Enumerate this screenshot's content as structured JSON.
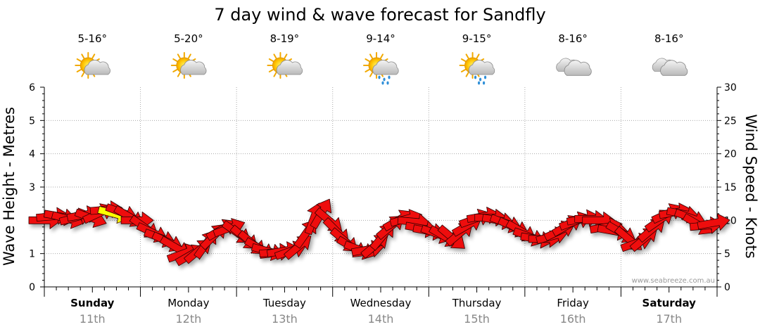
{
  "chart_data": {
    "type": "line",
    "title": "7 day wind & wave forecast for Sandfly",
    "ylabel_left": "Wave Height - Metres",
    "ylabel_right": "Wind Speed - Knots",
    "ylim_left": [
      0,
      6
    ],
    "ylim_right": [
      0,
      30
    ],
    "yticks_left": [
      "0",
      "1",
      "2",
      "3",
      "4",
      "5",
      "6"
    ],
    "yticks_right": [
      "0",
      "5",
      "10",
      "15",
      "20",
      "25",
      "30"
    ],
    "grid": true,
    "credit": "www.seabreeze.com.au",
    "days": [
      {
        "name": "Sunday",
        "date": "11th",
        "bold": true,
        "temp": "5-16°",
        "weather": "partly-cloudy-icon"
      },
      {
        "name": "Monday",
        "date": "12th",
        "bold": false,
        "temp": "5-20°",
        "weather": "partly-cloudy-icon"
      },
      {
        "name": "Tuesday",
        "date": "13th",
        "bold": false,
        "temp": "8-19°",
        "weather": "partly-cloudy-icon"
      },
      {
        "name": "Wednesday",
        "date": "14th",
        "bold": false,
        "temp": "9-14°",
        "weather": "showers-icon"
      },
      {
        "name": "Thursday",
        "date": "15th",
        "bold": false,
        "temp": "9-15°",
        "weather": "showers-icon"
      },
      {
        "name": "Friday",
        "date": "16th",
        "bold": false,
        "temp": "8-16°",
        "weather": "cloudy-icon"
      },
      {
        "name": "Saturday",
        "date": "17th",
        "bold": true,
        "temp": "8-16°",
        "weather": "cloudy-icon"
      }
    ],
    "series": [
      {
        "name": "Wind Speed - Knots",
        "unit": "knots",
        "points": [
          {
            "day": 0.0,
            "speed": 10.0,
            "dir": 0
          },
          {
            "day": 0.08,
            "speed": 10.6,
            "dir": -5
          },
          {
            "day": 0.16,
            "speed": 10.6,
            "dir": 10
          },
          {
            "day": 0.24,
            "speed": 10.2,
            "dir": 15
          },
          {
            "day": 0.32,
            "speed": 10.4,
            "dir": -15
          },
          {
            "day": 0.4,
            "speed": 10.8,
            "dir": -10
          },
          {
            "day": 0.48,
            "speed": 10.4,
            "dir": 20
          },
          {
            "day": 0.56,
            "speed": 11.0,
            "dir": -25
          },
          {
            "day": 0.64,
            "speed": 11.6,
            "dir": -5
          },
          {
            "day": 0.72,
            "speed": 11.0,
            "dir": 15,
            "color": "#ffff00"
          },
          {
            "day": 0.8,
            "speed": 11.2,
            "dir": 20
          },
          {
            "day": 0.88,
            "speed": 10.6,
            "dir": 30
          },
          {
            "day": 0.96,
            "speed": 10.0,
            "dir": 0
          },
          {
            "day": 1.04,
            "speed": 9.0,
            "dir": 35
          },
          {
            "day": 1.12,
            "speed": 8.2,
            "dir": 25
          },
          {
            "day": 1.2,
            "speed": 7.4,
            "dir": 20
          },
          {
            "day": 1.28,
            "speed": 6.8,
            "dir": 25
          },
          {
            "day": 1.36,
            "speed": 6.0,
            "dir": 30
          },
          {
            "day": 1.44,
            "speed": 5.0,
            "dir": -20
          },
          {
            "day": 1.52,
            "speed": 4.8,
            "dir": -30
          },
          {
            "day": 1.6,
            "speed": 5.4,
            "dir": -40
          },
          {
            "day": 1.68,
            "speed": 6.4,
            "dir": -55
          },
          {
            "day": 1.76,
            "speed": 7.6,
            "dir": -45
          },
          {
            "day": 1.84,
            "speed": 8.6,
            "dir": -30
          },
          {
            "day": 1.92,
            "speed": 8.8,
            "dir": -20
          },
          {
            "day": 2.0,
            "speed": 8.2,
            "dir": 35
          },
          {
            "day": 2.08,
            "speed": 7.4,
            "dir": 40
          },
          {
            "day": 2.16,
            "speed": 6.6,
            "dir": 40
          },
          {
            "day": 2.24,
            "speed": 5.8,
            "dir": 30
          },
          {
            "day": 2.32,
            "speed": 5.4,
            "dir": 15
          },
          {
            "day": 2.4,
            "speed": 5.2,
            "dir": -5
          },
          {
            "day": 2.48,
            "speed": 5.4,
            "dir": -10
          },
          {
            "day": 2.56,
            "speed": 5.4,
            "dir": -20
          },
          {
            "day": 2.64,
            "speed": 6.0,
            "dir": -40
          },
          {
            "day": 2.72,
            "speed": 8.0,
            "dir": -55
          },
          {
            "day": 2.8,
            "speed": 10.2,
            "dir": -70
          },
          {
            "day": 2.88,
            "speed": 11.0,
            "dir": -60
          },
          {
            "day": 2.96,
            "speed": 10.0,
            "dir": 40
          },
          {
            "day": 3.04,
            "speed": 8.4,
            "dir": 45
          },
          {
            "day": 3.12,
            "speed": 7.0,
            "dir": 40
          },
          {
            "day": 3.2,
            "speed": 6.0,
            "dir": 30
          },
          {
            "day": 3.28,
            "speed": 5.6,
            "dir": 20
          },
          {
            "day": 3.36,
            "speed": 5.6,
            "dir": -10
          },
          {
            "day": 3.44,
            "speed": 6.2,
            "dir": -40
          },
          {
            "day": 3.52,
            "speed": 7.6,
            "dir": -50
          },
          {
            "day": 3.6,
            "speed": 9.0,
            "dir": -40
          },
          {
            "day": 3.68,
            "speed": 10.0,
            "dir": -30
          },
          {
            "day": 3.76,
            "speed": 10.2,
            "dir": -15
          },
          {
            "day": 3.84,
            "speed": 9.8,
            "dir": 5
          },
          {
            "day": 3.92,
            "speed": 8.8,
            "dir": 10
          },
          {
            "day": 4.0,
            "speed": 8.4,
            "dir": 10
          },
          {
            "day": 4.08,
            "speed": 8.0,
            "dir": 20
          },
          {
            "day": 4.16,
            "speed": 7.6,
            "dir": 30
          },
          {
            "day": 4.24,
            "speed": 7.4,
            "dir": 40
          },
          {
            "day": 4.32,
            "speed": 8.0,
            "dir": -40
          },
          {
            "day": 4.4,
            "speed": 9.2,
            "dir": -30
          },
          {
            "day": 4.48,
            "speed": 10.2,
            "dir": -20
          },
          {
            "day": 4.56,
            "speed": 10.6,
            "dir": -10
          },
          {
            "day": 4.64,
            "speed": 10.4,
            "dir": 0
          },
          {
            "day": 4.72,
            "speed": 10.0,
            "dir": 10
          },
          {
            "day": 4.8,
            "speed": 9.6,
            "dir": 20
          },
          {
            "day": 4.88,
            "speed": 9.0,
            "dir": 25
          },
          {
            "day": 4.96,
            "speed": 8.4,
            "dir": 30
          },
          {
            "day": 5.04,
            "speed": 7.6,
            "dir": 20
          },
          {
            "day": 5.12,
            "speed": 7.2,
            "dir": 10
          },
          {
            "day": 5.2,
            "speed": 7.2,
            "dir": 0
          },
          {
            "day": 5.28,
            "speed": 7.6,
            "dir": -15
          },
          {
            "day": 5.36,
            "speed": 8.4,
            "dir": -25
          },
          {
            "day": 5.44,
            "speed": 9.2,
            "dir": -30
          },
          {
            "day": 5.52,
            "speed": 9.8,
            "dir": -20
          },
          {
            "day": 5.6,
            "speed": 10.2,
            "dir": -10
          },
          {
            "day": 5.68,
            "speed": 10.2,
            "dir": 0
          },
          {
            "day": 5.76,
            "speed": 10.0,
            "dir": 0
          },
          {
            "day": 5.84,
            "speed": 9.0,
            "dir": -10
          },
          {
            "day": 5.92,
            "speed": 8.4,
            "dir": 10
          },
          {
            "day": 6.0,
            "speed": 8.2,
            "dir": 30
          },
          {
            "day": 6.08,
            "speed": 7.2,
            "dir": 40
          },
          {
            "day": 6.16,
            "speed": 6.6,
            "dir": -20
          },
          {
            "day": 6.24,
            "speed": 7.2,
            "dir": -40
          },
          {
            "day": 6.32,
            "speed": 8.6,
            "dir": -40
          },
          {
            "day": 6.4,
            "speed": 10.0,
            "dir": -35
          },
          {
            "day": 6.48,
            "speed": 11.0,
            "dir": -25
          },
          {
            "day": 6.56,
            "speed": 11.2,
            "dir": -10
          },
          {
            "day": 6.64,
            "speed": 11.0,
            "dir": 10
          },
          {
            "day": 6.72,
            "speed": 10.4,
            "dir": 20
          },
          {
            "day": 6.8,
            "speed": 9.4,
            "dir": 30
          },
          {
            "day": 6.88,
            "speed": 9.2,
            "dir": -5
          },
          {
            "day": 6.96,
            "speed": 9.6,
            "dir": -10
          }
        ]
      }
    ]
  }
}
